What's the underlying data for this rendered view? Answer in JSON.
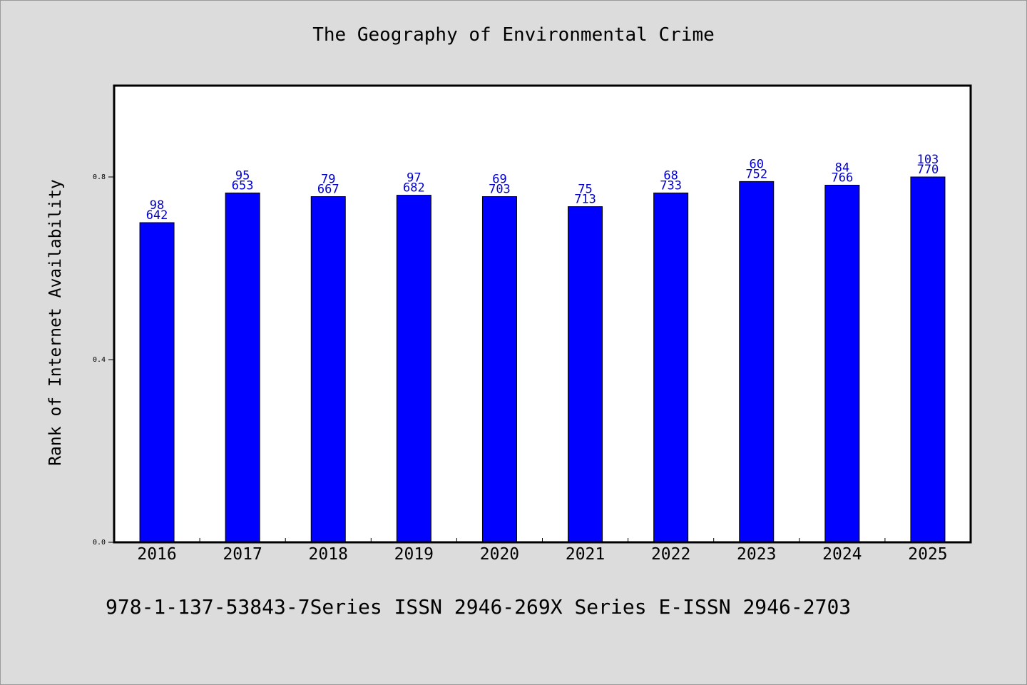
{
  "chart_data": {
    "type": "bar",
    "title": "The Geography of Environmental Crime",
    "xlabel": "",
    "ylabel": "Rank of Internet Availability",
    "ylim": [
      0,
      1.0
    ],
    "yticks": [
      "0.0",
      "0.4",
      "0.8"
    ],
    "ytick_values": [
      0.0,
      0.4,
      0.8
    ],
    "categories": [
      "2016",
      "2017",
      "2018",
      "2019",
      "2020",
      "2021",
      "2022",
      "2023",
      "2024",
      "2025"
    ],
    "values": [
      0.7,
      0.765,
      0.757,
      0.76,
      0.757,
      0.735,
      0.765,
      0.79,
      0.782,
      0.8
    ],
    "label_top": [
      "98",
      "95",
      "79",
      "97",
      "69",
      "75",
      "68",
      "60",
      "84",
      "103"
    ],
    "label_bottom": [
      "642",
      "653",
      "667",
      "682",
      "703",
      "713",
      "733",
      "752",
      "766",
      "770"
    ],
    "grid": false,
    "bar_color": "#0000ff",
    "label_color": "#0000cc"
  },
  "footer": {
    "text": "978-1-137-53843-7Series ISSN 2946-269X Series E-ISSN 2946-2703"
  }
}
